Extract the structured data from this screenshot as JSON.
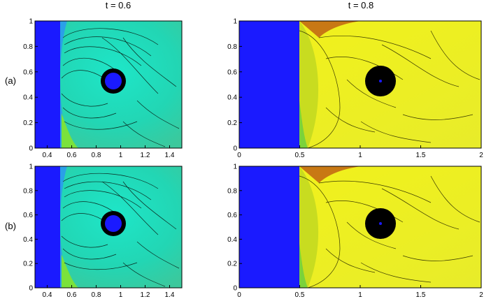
{
  "figure": {
    "columns": [
      {
        "title": "t = 0.6"
      },
      {
        "title": "t = 0.8"
      }
    ],
    "rows": [
      {
        "label": "(a)"
      },
      {
        "label": "(b)"
      }
    ]
  },
  "chart_data": [
    {
      "type": "heatmap",
      "panel": "a-t0.6",
      "xticks": [
        "0.4",
        "0.6",
        "0.8",
        "1",
        "1.2",
        "1.4"
      ],
      "yticks": [
        "0",
        "0.2",
        "0.4",
        "0.6",
        "0.8",
        "1"
      ],
      "xlim": [
        0.3,
        1.5
      ],
      "ylim": [
        0,
        1
      ],
      "colormap": "cyan-green",
      "colors": {
        "wall": "#1a1aff",
        "field": "#22e6c8",
        "high": "#28b4f0",
        "low": "#8aef3c"
      }
    },
    {
      "type": "heatmap",
      "panel": "a-t0.8",
      "xticks": [
        "0",
        "0.5",
        "1",
        "1.5",
        "2"
      ],
      "yticks": [
        "0",
        "0.2",
        "0.4",
        "0.6",
        "0.8",
        "1"
      ],
      "xlim": [
        0,
        2
      ],
      "ylim": [
        0,
        1
      ],
      "colormap": "yellow",
      "colors": {
        "wall": "#1a1aff",
        "field": "#f2f21a",
        "high": "#c87814",
        "low": "#7ad23c"
      }
    },
    {
      "type": "heatmap",
      "panel": "b-t0.6",
      "xticks": [
        "0.4",
        "0.6",
        "0.8",
        "1",
        "1.2",
        "1.4"
      ],
      "yticks": [
        "0",
        "0.2",
        "0.4",
        "0.6",
        "0.8",
        "1"
      ],
      "xlim": [
        0.3,
        1.5
      ],
      "ylim": [
        0,
        1
      ],
      "colormap": "cyan-green",
      "colors": {
        "wall": "#1a1aff",
        "field": "#22e6c8",
        "high": "#28b4f0",
        "low": "#8aef3c"
      }
    },
    {
      "type": "heatmap",
      "panel": "b-t0.8",
      "xticks": [
        "0",
        "0.5",
        "1",
        "1.5",
        "2"
      ],
      "yticks": [
        "0",
        "0.2",
        "0.4",
        "0.6",
        "0.8",
        "1"
      ],
      "xlim": [
        0,
        2
      ],
      "ylim": [
        0,
        1
      ],
      "colormap": "yellow",
      "colors": {
        "wall": "#1a1aff",
        "field": "#f2f21a",
        "high": "#c87814",
        "low": "#7ad23c"
      }
    }
  ]
}
